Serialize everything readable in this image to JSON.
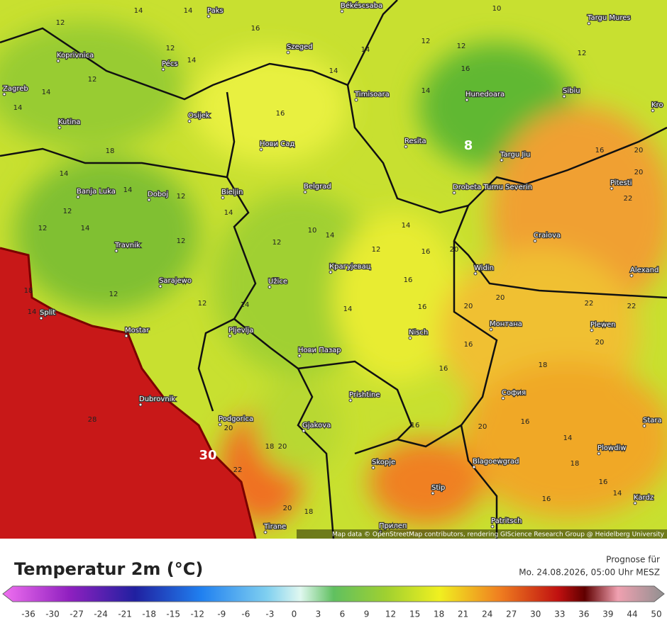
{
  "map": {
    "cities": [
      "Paks",
      "Békéscsaba",
      "Targu Mures",
      "Koprivnica",
      "Pécs",
      "Szeged",
      "Zagreb",
      "Timisoara",
      "Hunedoara",
      "Sibiu",
      "Osijek",
      "Kutina",
      "Resita",
      "Нови Сад",
      "Targu Jiu",
      "Banja Luka",
      "Doboj",
      "Bieljin",
      "Belgrad",
      "Drobeta Turnu Severin",
      "Pitesti",
      "Travnik",
      "Craiova",
      "Крагујевац",
      "Sarajewo",
      "Užice",
      "Widin",
      "Alexand",
      "Split",
      "Mostar",
      "Pljevlja",
      "Монтана",
      "Plewen",
      "Nisch",
      "Нови Пазар",
      "Dubrovnik",
      "Prishtine",
      "София",
      "Podgorica",
      "Gjakova",
      "Stara",
      "Plowdiw",
      "Skopje",
      "Blagoewgrad",
      "Stip",
      "Kardz",
      "Patritsch",
      "Tirane",
      "Прилеп",
      "Kro"
    ],
    "temps": [
      14,
      14,
      12,
      16,
      12,
      14,
      12,
      14,
      14,
      14,
      12,
      12,
      10,
      12,
      14,
      16,
      14,
      16,
      18,
      14,
      14,
      12,
      12,
      12,
      14,
      12,
      14,
      12,
      10,
      14,
      14,
      12,
      16,
      20,
      18,
      14,
      12,
      12,
      14,
      14,
      20,
      20,
      22,
      22,
      16,
      16,
      20,
      18,
      16,
      16,
      28,
      20,
      18,
      20,
      22,
      20,
      18,
      16,
      20,
      16,
      14,
      18,
      16,
      14,
      16,
      22,
      20,
      16,
      20,
      30,
      8
    ],
    "attribution": "Map data © OpenStreetMap contributors, rendering GIScience Research Group @ Heidelberg University"
  },
  "legend": {
    "title": "Temperatur 2m (°C)",
    "ticks": [
      -36,
      -30,
      -27,
      -24,
      -21,
      -18,
      -15,
      -12,
      -9,
      -6,
      -3,
      0,
      3,
      6,
      9,
      12,
      15,
      18,
      21,
      24,
      27,
      30,
      33,
      36,
      39,
      44,
      50
    ]
  },
  "forecast": {
    "label": "Prognose für",
    "time": "Mo. 24.08.2026, 05:00 Uhr MESZ"
  }
}
